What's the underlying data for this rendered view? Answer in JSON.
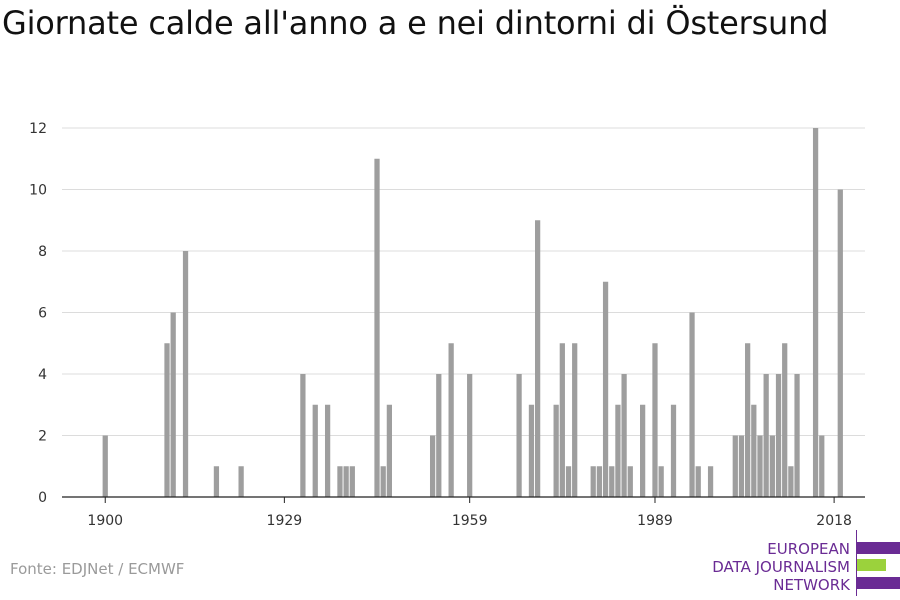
{
  "title": "Giornate calde all'anno a e nei dintorni di Östersund",
  "source": "Fonte: EDJNet / ECMWF",
  "logo": {
    "lines": [
      "EUROPEAN",
      "DATA JOURNALISM",
      "NETWORK"
    ],
    "colors": {
      "purple": "#6a2b94",
      "green": "#9bd23c"
    }
  },
  "colors": {
    "bar": "#9e9e9e",
    "grid": "#dcdcdc",
    "axis": "#222222",
    "tick_text": "#333333"
  },
  "chart_data": {
    "type": "bar",
    "title": "Giornate calde all'anno a e nei dintorni di Östersund",
    "xlabel": "",
    "ylabel": "",
    "xlim": [
      1893,
      2023
    ],
    "ylim": [
      0,
      12
    ],
    "xticks": [
      1900,
      1929,
      1959,
      1989,
      2018
    ],
    "yticks": [
      0,
      2,
      4,
      6,
      8,
      10,
      12
    ],
    "grid": true,
    "series": [
      {
        "points": [
          [
            1900,
            2
          ],
          [
            1910,
            5
          ],
          [
            1911,
            6
          ],
          [
            1913,
            8
          ],
          [
            1918,
            1
          ],
          [
            1922,
            1
          ],
          [
            1932,
            4
          ],
          [
            1934,
            3
          ],
          [
            1936,
            3
          ],
          [
            1938,
            1
          ],
          [
            1939,
            1
          ],
          [
            1940,
            1
          ],
          [
            1944,
            11
          ],
          [
            1945,
            1
          ],
          [
            1946,
            3
          ],
          [
            1953,
            2
          ],
          [
            1954,
            4
          ],
          [
            1956,
            5
          ],
          [
            1959,
            4
          ],
          [
            1967,
            4
          ],
          [
            1969,
            3
          ],
          [
            1970,
            9
          ],
          [
            1973,
            3
          ],
          [
            1974,
            5
          ],
          [
            1975,
            1
          ],
          [
            1976,
            5
          ],
          [
            1979,
            1
          ],
          [
            1980,
            1
          ],
          [
            1981,
            7
          ],
          [
            1982,
            1
          ],
          [
            1983,
            3
          ],
          [
            1984,
            4
          ],
          [
            1985,
            1
          ],
          [
            1987,
            3
          ],
          [
            1989,
            5
          ],
          [
            1990,
            1
          ],
          [
            1992,
            3
          ],
          [
            1995,
            6
          ],
          [
            1996,
            1
          ],
          [
            1998,
            1
          ],
          [
            2002,
            2
          ],
          [
            2003,
            2
          ],
          [
            2004,
            5
          ],
          [
            2005,
            3
          ],
          [
            2006,
            2
          ],
          [
            2007,
            4
          ],
          [
            2008,
            2
          ],
          [
            2009,
            4
          ],
          [
            2010,
            5
          ],
          [
            2011,
            1
          ],
          [
            2012,
            4
          ],
          [
            2015,
            12
          ],
          [
            2016,
            2
          ],
          [
            2019,
            10
          ]
        ]
      }
    ]
  }
}
